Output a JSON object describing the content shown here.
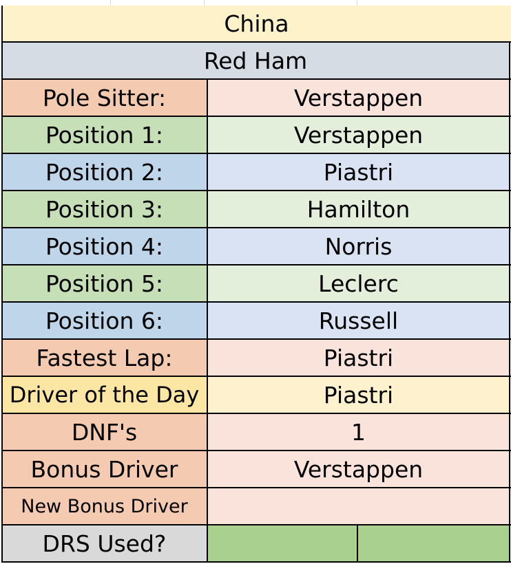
{
  "title": "China",
  "team": "Red Ham",
  "rows": [
    {
      "label": "Pole Sitter:",
      "value": "Verstappen"
    },
    {
      "label": "Position 1:",
      "value": "Verstappen"
    },
    {
      "label": "Position 2:",
      "value": "Piastri"
    },
    {
      "label": "Position 3:",
      "value": "Hamilton"
    },
    {
      "label": "Position 4:",
      "value": "Norris"
    },
    {
      "label": "Position 5:",
      "value": "Leclerc"
    },
    {
      "label": "Position 6:",
      "value": "Russell"
    },
    {
      "label": "Fastest Lap:",
      "value": "Piastri"
    },
    {
      "label": "Driver of the Day",
      "value": "Piastri"
    },
    {
      "label": "DNF's",
      "value": "1"
    },
    {
      "label": "Bonus Driver",
      "value": "Verstappen"
    },
    {
      "label": "New Bonus Driver",
      "value": ""
    },
    {
      "label": "DRS Used?",
      "value": ""
    }
  ],
  "colors": {
    "title_bg": "#fef2cb",
    "team_bg": "#d5dce4",
    "orange_label": "#f4cbb0",
    "orange_value": "#f9e3da",
    "green_label": "#c7dfb6",
    "green_value": "#e3eedb",
    "blue_label": "#bfd5ea",
    "blue_value": "#dae3f3",
    "yellow_label": "#fce6a4",
    "yellow_value": "#fdf2cd",
    "grey_label": "#d9d9d9",
    "drs_green": "#a9d08e"
  }
}
